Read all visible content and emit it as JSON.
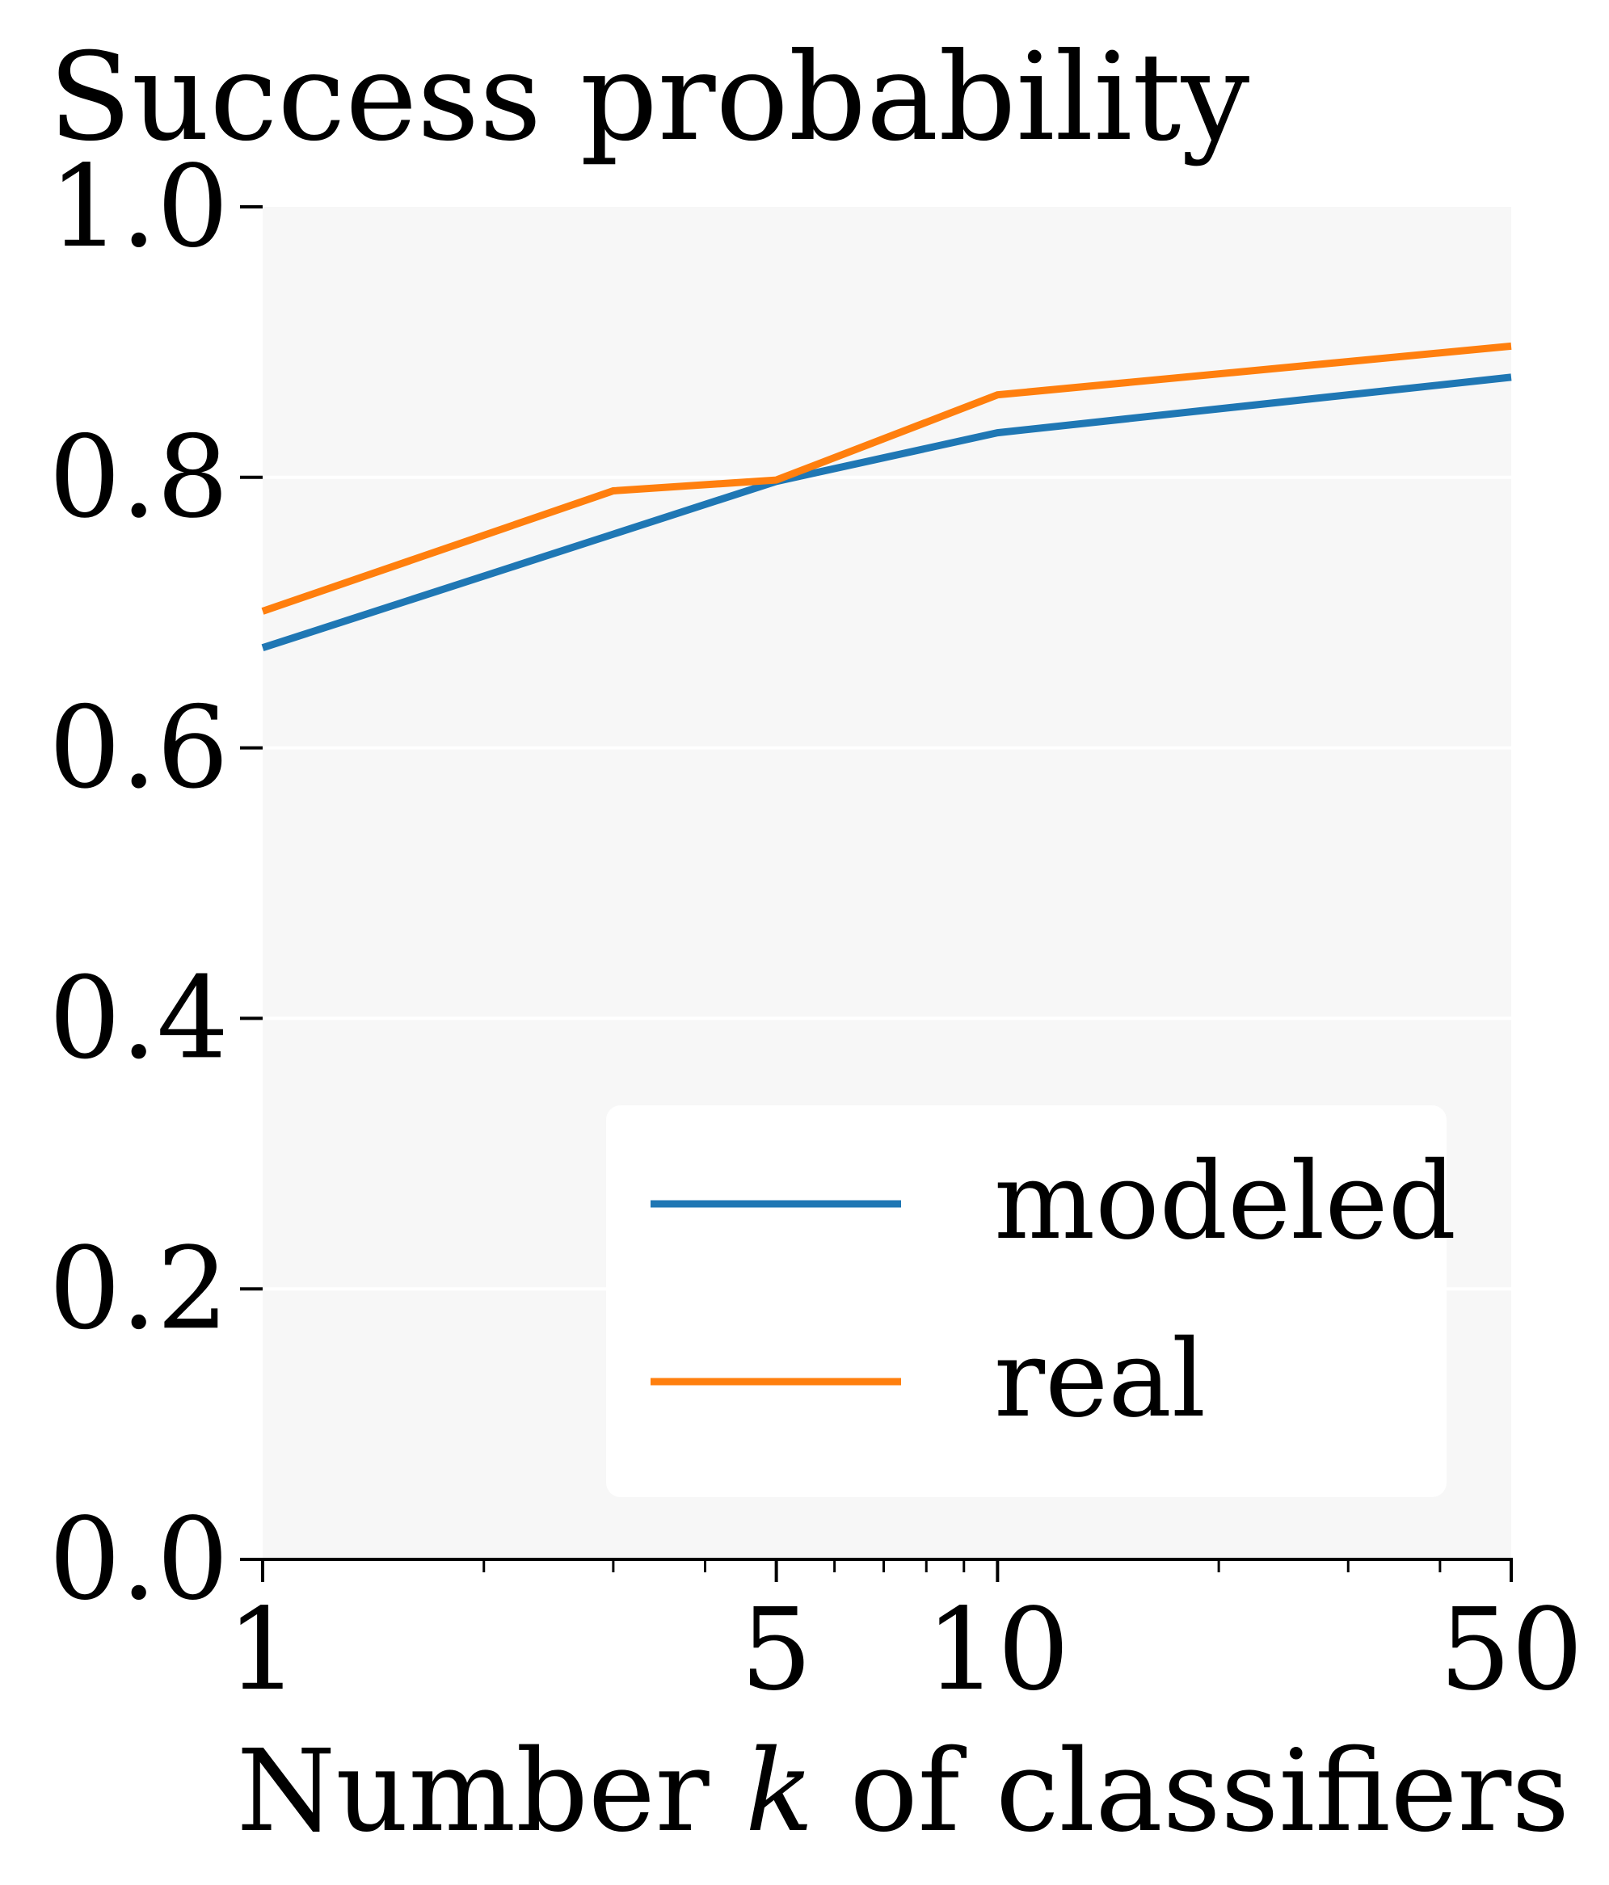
{
  "chart_data": {
    "type": "line",
    "title": "Success probability",
    "xlabel": "Number k of classifiers",
    "xlabel_parts": {
      "before": "Number ",
      "var": "k",
      "after": " of classifiers"
    },
    "ylabel": "",
    "x_scale": "log",
    "xlim": [
      1,
      50
    ],
    "ylim": [
      0.0,
      1.0
    ],
    "x_ticks": [
      {
        "value": 1,
        "label": "1"
      },
      {
        "value": 5,
        "label": "5"
      },
      {
        "value": 10,
        "label": "10"
      },
      {
        "value": 50,
        "label": "50"
      }
    ],
    "x_minor_ticks": [
      2,
      3,
      4,
      6,
      7,
      8,
      9,
      20,
      30,
      40
    ],
    "y_ticks": [
      {
        "value": 0.0,
        "label": "0.0"
      },
      {
        "value": 0.2,
        "label": "0.2"
      },
      {
        "value": 0.4,
        "label": "0.4"
      },
      {
        "value": 0.6,
        "label": "0.6"
      },
      {
        "value": 0.8,
        "label": "0.8"
      },
      {
        "value": 1.0,
        "label": "1.0"
      }
    ],
    "grid": "horizontal",
    "legend_position": "lower-right",
    "series": [
      {
        "name": "modeled",
        "color": "#1f77b4",
        "x": [
          1,
          3,
          5,
          10,
          50
        ],
        "y": [
          0.674,
          0.758,
          0.797,
          0.833,
          0.874
        ]
      },
      {
        "name": "real",
        "color": "#ff7f0e",
        "x": [
          1,
          3,
          5,
          10,
          50
        ],
        "y": [
          0.701,
          0.79,
          0.798,
          0.861,
          0.897
        ]
      }
    ],
    "colors": {
      "plot_background": "#f7f7f7",
      "grid": "#ffffff",
      "axis": "#000000"
    }
  }
}
